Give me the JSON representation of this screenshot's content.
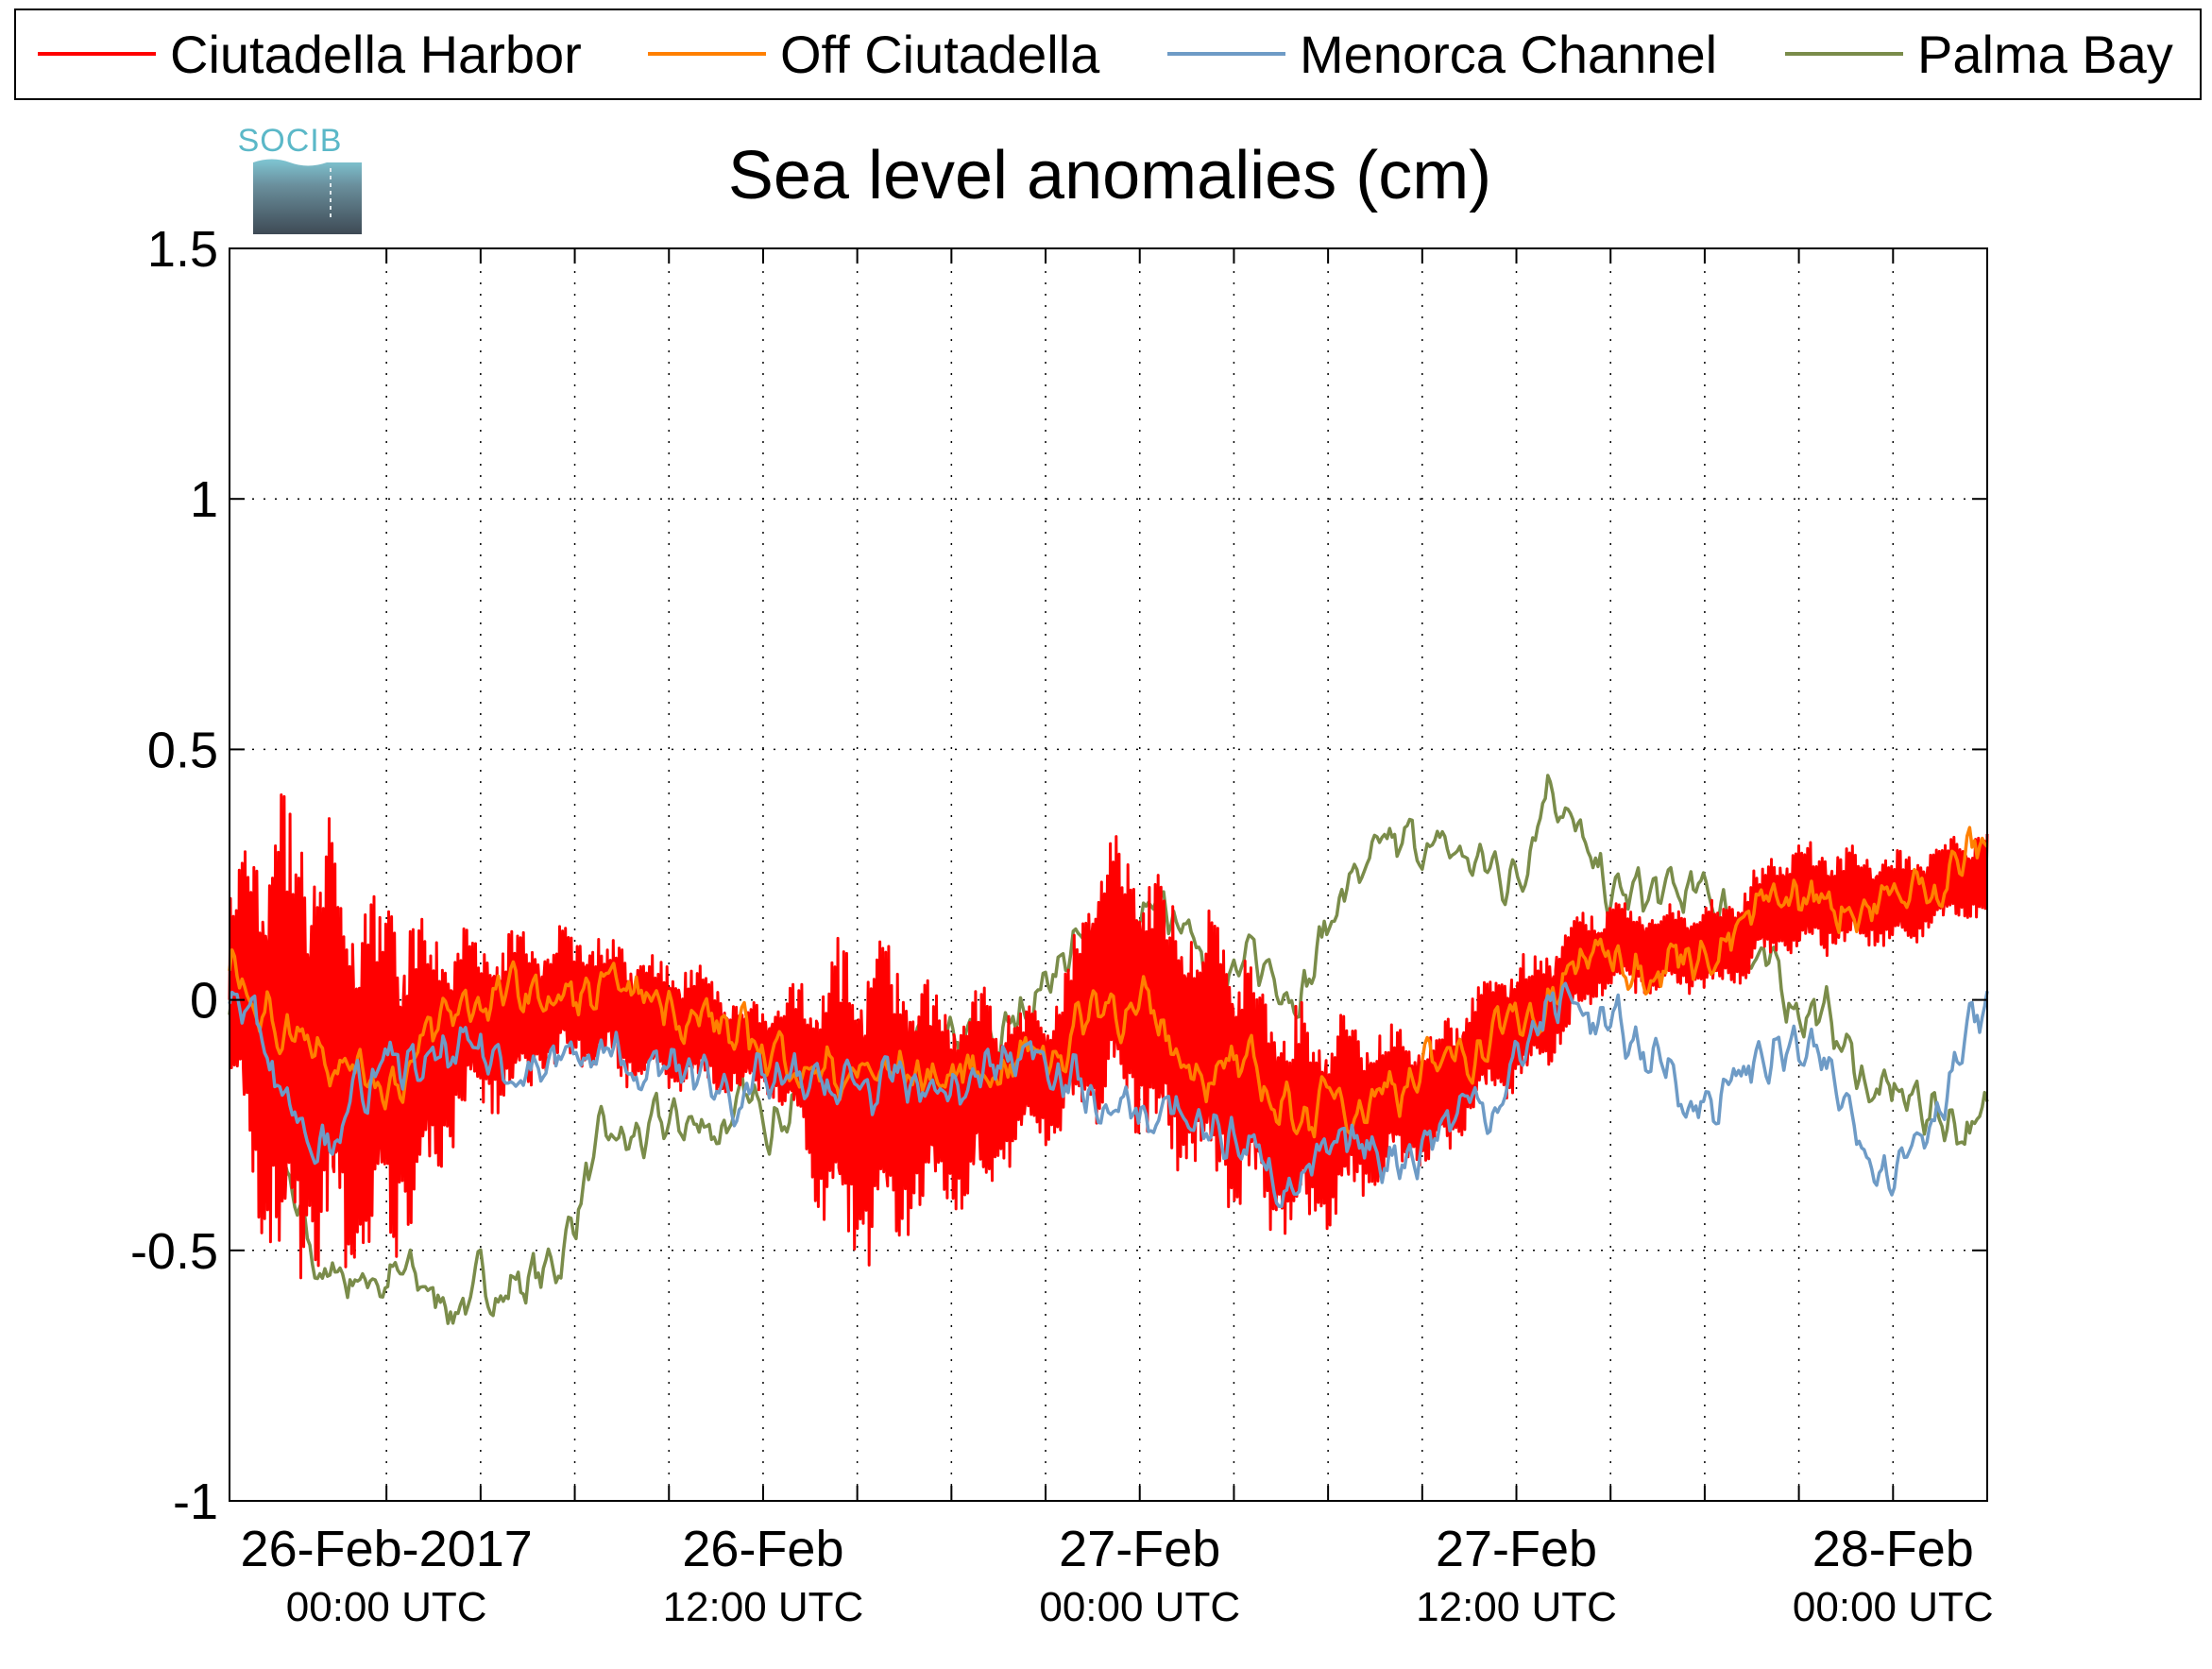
{
  "chart_data": {
    "type": "line",
    "title": "Sea level anomalies (cm)",
    "xlabel": "",
    "ylabel": "",
    "ylim": [
      -1,
      1.5
    ],
    "yticks": [
      -1,
      -0.5,
      0,
      0.5,
      1,
      1.5
    ],
    "ytick_labels": [
      "-1",
      "-0.5",
      "0",
      "0.5",
      "1",
      "1.5"
    ],
    "xlim": [
      "2017-02-25T19:00",
      "2017-02-28T03:00"
    ],
    "x_major_ticks": [
      {
        "x": "2017-02-26T00:00",
        "label": "26-Feb-2017",
        "sublabel": "00:00 UTC"
      },
      {
        "x": "2017-02-26T12:00",
        "label": "26-Feb",
        "sublabel": "12:00 UTC"
      },
      {
        "x": "2017-02-27T00:00",
        "label": "27-Feb",
        "sublabel": "00:00 UTC"
      },
      {
        "x": "2017-02-27T12:00",
        "label": "27-Feb",
        "sublabel": "12:00 UTC"
      },
      {
        "x": "2017-02-28T00:00",
        "label": "28-Feb",
        "sublabel": "00:00 UTC"
      }
    ],
    "x_minor_ticks": [
      "2017-02-26T03:00",
      "2017-02-26T06:00",
      "2017-02-26T09:00",
      "2017-02-26T15:00",
      "2017-02-26T18:00",
      "2017-02-26T21:00",
      "2017-02-27T03:00",
      "2017-02-27T06:00",
      "2017-02-27T09:00",
      "2017-02-27T15:00",
      "2017-02-27T18:00",
      "2017-02-27T21:00"
    ],
    "grid": true,
    "legend_position": "top",
    "series": [
      {
        "name": "Ciutadella Harbor",
        "color": "#ff0000",
        "oscillation": true,
        "x": [
          "2017-02-25T19:00",
          "2017-02-25T21:00",
          "2017-02-26T00:00",
          "2017-02-26T03:00",
          "2017-02-26T06:00",
          "2017-02-26T09:00",
          "2017-02-26T12:00",
          "2017-02-26T15:00",
          "2017-02-26T18:00",
          "2017-02-26T21:00",
          "2017-02-26T23:00",
          "2017-02-27T02:00",
          "2017-02-27T05:00",
          "2017-02-27T09:00",
          "2017-02-27T12:00",
          "2017-02-27T15:00",
          "2017-02-27T18:00",
          "2017-02-27T21:00",
          "2017-02-28T00:00",
          "2017-02-28T03:00"
        ],
        "y": [
          0.0,
          -0.1,
          -0.15,
          -0.05,
          0.0,
          -0.05,
          -0.1,
          -0.2,
          -0.2,
          -0.15,
          0.05,
          -0.1,
          -0.25,
          -0.2,
          -0.05,
          0.1,
          0.1,
          0.2,
          0.2,
          0.25
        ],
        "amplitude": [
          0.3,
          0.55,
          0.4,
          0.2,
          0.15,
          0.15,
          0.1,
          0.35,
          0.25,
          0.15,
          0.3,
          0.3,
          0.25,
          0.15,
          0.15,
          0.1,
          0.1,
          0.12,
          0.1,
          0.1
        ]
      },
      {
        "name": "Off Ciutadella",
        "color": "#ff8000",
        "x": [
          "2017-02-25T19:00",
          "2017-02-25T21:00",
          "2017-02-26T00:00",
          "2017-02-26T03:00",
          "2017-02-26T06:00",
          "2017-02-26T09:00",
          "2017-02-26T12:00",
          "2017-02-26T15:00",
          "2017-02-26T18:00",
          "2017-02-26T21:00",
          "2017-02-26T23:00",
          "2017-02-27T02:00",
          "2017-02-27T05:00",
          "2017-02-27T09:00",
          "2017-02-27T12:00",
          "2017-02-27T15:00",
          "2017-02-27T18:00",
          "2017-02-27T21:00",
          "2017-02-28T00:00",
          "2017-02-28T03:00"
        ],
        "y": [
          0.05,
          -0.05,
          -0.15,
          0.0,
          0.0,
          0.0,
          -0.1,
          -0.15,
          -0.15,
          -0.1,
          0.0,
          -0.12,
          -0.22,
          -0.15,
          -0.05,
          0.1,
          0.1,
          0.2,
          0.2,
          0.3
        ]
      },
      {
        "name": "Menorca Channel",
        "color": "#6e9bc6",
        "x": [
          "2017-02-25T19:00",
          "2017-02-25T22:00",
          "2017-02-26T00:00",
          "2017-02-26T03:00",
          "2017-02-26T06:00",
          "2017-02-26T09:00",
          "2017-02-26T12:00",
          "2017-02-26T15:00",
          "2017-02-26T18:00",
          "2017-02-26T21:00",
          "2017-02-26T23:00",
          "2017-02-27T02:00",
          "2017-02-27T05:00",
          "2017-02-27T08:00",
          "2017-02-27T11:00",
          "2017-02-27T13:30",
          "2017-02-27T16:00",
          "2017-02-27T18:00",
          "2017-02-27T20:30",
          "2017-02-28T00:00",
          "2017-02-28T03:00"
        ],
        "y": [
          0.0,
          -0.25,
          -0.15,
          -0.12,
          -0.12,
          -0.15,
          -0.18,
          -0.18,
          -0.18,
          -0.1,
          -0.22,
          -0.25,
          -0.35,
          -0.3,
          -0.2,
          0.0,
          -0.1,
          -0.2,
          -0.1,
          -0.3,
          -0.05
        ]
      },
      {
        "name": "Palma Bay",
        "color": "#7a8c4a",
        "x": [
          "2017-02-25T19:00",
          "2017-02-25T22:00",
          "2017-02-26T00:00",
          "2017-02-26T02:00",
          "2017-02-26T05:00",
          "2017-02-26T07:00",
          "2017-02-26T10:00",
          "2017-02-26T13:00",
          "2017-02-26T16:00",
          "2017-02-26T19:00",
          "2017-02-26T22:00",
          "2017-02-27T01:00",
          "2017-02-27T03:00",
          "2017-02-27T05:00",
          "2017-02-27T07:00",
          "2017-02-27T09:00",
          "2017-02-27T12:00",
          "2017-02-27T13:00",
          "2017-02-27T15:00",
          "2017-02-27T18:00",
          "2017-02-27T21:00",
          "2017-02-28T00:00",
          "2017-02-28T03:00"
        ],
        "y": [
          0.0,
          -0.55,
          -0.55,
          -0.6,
          -0.55,
          -0.3,
          -0.25,
          -0.2,
          -0.15,
          -0.1,
          0.1,
          0.15,
          0.05,
          0.05,
          0.25,
          0.3,
          0.25,
          0.45,
          0.2,
          0.2,
          0.0,
          -0.2,
          -0.25
        ]
      }
    ]
  },
  "logo": {
    "text": "SOCIB"
  }
}
